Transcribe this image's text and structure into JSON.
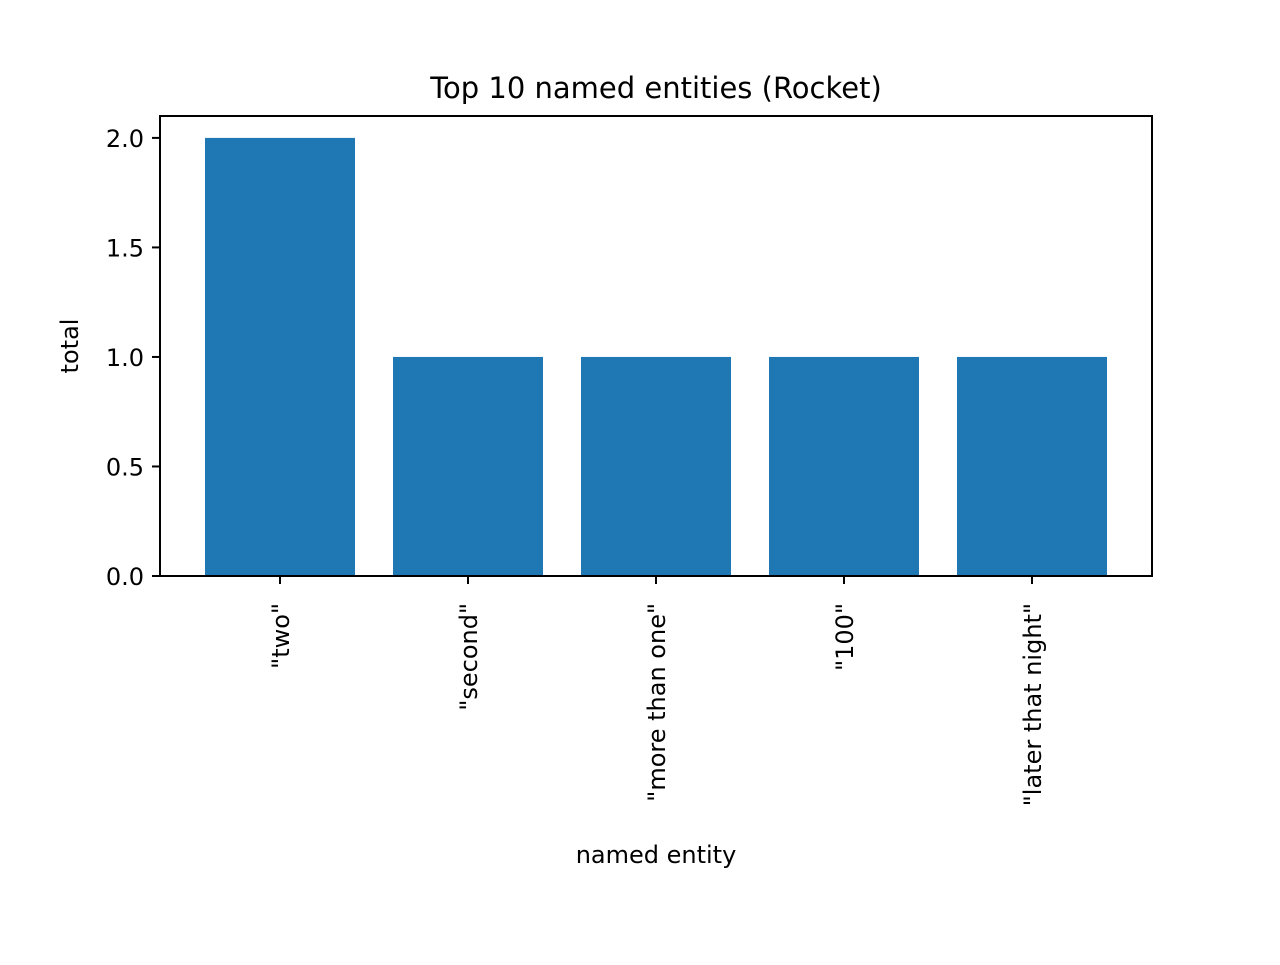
{
  "chart_data": {
    "type": "bar",
    "title": "Top 10 named entities (Rocket)",
    "xlabel": "named entity",
    "ylabel": "total",
    "categories": [
      "\"two\"",
      "\"second\"",
      "\"more than one\"",
      "\"100\"",
      "\"later that night\""
    ],
    "values": [
      2,
      1,
      1,
      1,
      1
    ],
    "ylim": [
      0,
      2.1
    ],
    "yticks": [
      "0.0",
      "0.5",
      "1.0",
      "1.5",
      "2.0"
    ],
    "bar_color": "#1f77b4",
    "grid": false,
    "legend": "none"
  }
}
